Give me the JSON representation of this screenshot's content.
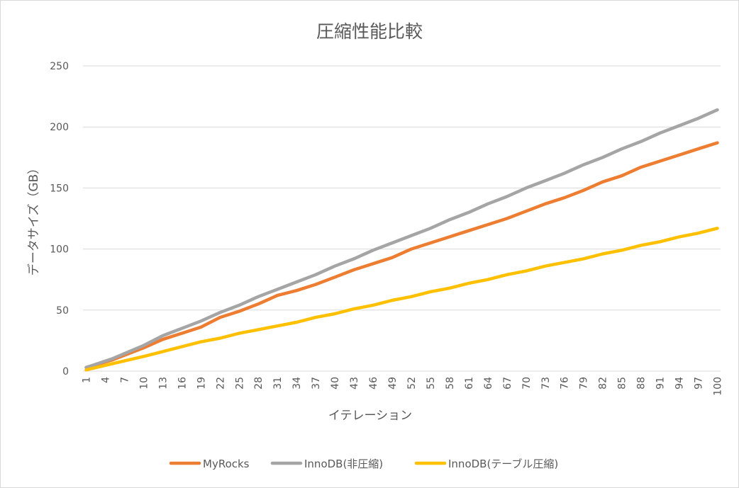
{
  "chart_data": {
    "type": "line",
    "title": "圧縮性能比較",
    "xlabel": "イテレーション",
    "ylabel": "データサイズ（GB）",
    "ylim": [
      0,
      250
    ],
    "y_ticks": [
      0,
      50,
      100,
      150,
      200,
      250
    ],
    "x_range": [
      1,
      100
    ],
    "x_tick_labels": [
      "1",
      "4",
      "7",
      "10",
      "13",
      "16",
      "19",
      "22",
      "25",
      "28",
      "31",
      "34",
      "37",
      "40",
      "43",
      "46",
      "49",
      "52",
      "55",
      "58",
      "61",
      "64",
      "67",
      "70",
      "73",
      "76",
      "79",
      "82",
      "85",
      "88",
      "91",
      "94",
      "97",
      "100"
    ],
    "grid": true,
    "legend_position": "bottom",
    "series": [
      {
        "name": "MyRocks",
        "color": "#ed7d31",
        "x": [
          1,
          5,
          10,
          13,
          16,
          19,
          22,
          25,
          28,
          31,
          34,
          37,
          40,
          43,
          46,
          49,
          52,
          55,
          58,
          61,
          64,
          67,
          70,
          73,
          76,
          79,
          82,
          85,
          88,
          91,
          94,
          97,
          100
        ],
        "values": [
          3,
          9,
          19,
          26,
          31,
          36,
          44,
          49,
          55,
          62,
          66,
          71,
          77,
          83,
          88,
          93,
          100,
          105,
          110,
          115,
          120,
          125,
          131,
          137,
          142,
          148,
          155,
          160,
          167,
          172,
          177,
          182,
          187
        ]
      },
      {
        "name": "InnoDB(非圧縮)",
        "color": "#a5a5a5",
        "x": [
          1,
          5,
          10,
          13,
          16,
          19,
          22,
          25,
          28,
          31,
          34,
          37,
          40,
          43,
          46,
          49,
          52,
          55,
          58,
          61,
          64,
          67,
          70,
          73,
          76,
          79,
          82,
          85,
          88,
          91,
          94,
          97,
          100
        ],
        "values": [
          3,
          10,
          21,
          29,
          35,
          41,
          48,
          54,
          61,
          67,
          73,
          79,
          86,
          92,
          99,
          105,
          111,
          117,
          124,
          130,
          137,
          143,
          150,
          156,
          162,
          169,
          175,
          182,
          188,
          195,
          201,
          207,
          214
        ]
      },
      {
        "name": "InnoDB(テーブル圧縮)",
        "color": "#ffc000",
        "x": [
          1,
          5,
          10,
          13,
          16,
          19,
          22,
          25,
          28,
          31,
          34,
          37,
          40,
          43,
          46,
          49,
          52,
          55,
          58,
          61,
          64,
          67,
          70,
          73,
          76,
          79,
          82,
          85,
          88,
          91,
          94,
          97,
          100
        ],
        "values": [
          1,
          6,
          12,
          16,
          20,
          24,
          27,
          31,
          34,
          37,
          40,
          44,
          47,
          51,
          54,
          58,
          61,
          65,
          68,
          72,
          75,
          79,
          82,
          86,
          89,
          92,
          96,
          99,
          103,
          106,
          110,
          113,
          117
        ]
      }
    ]
  }
}
